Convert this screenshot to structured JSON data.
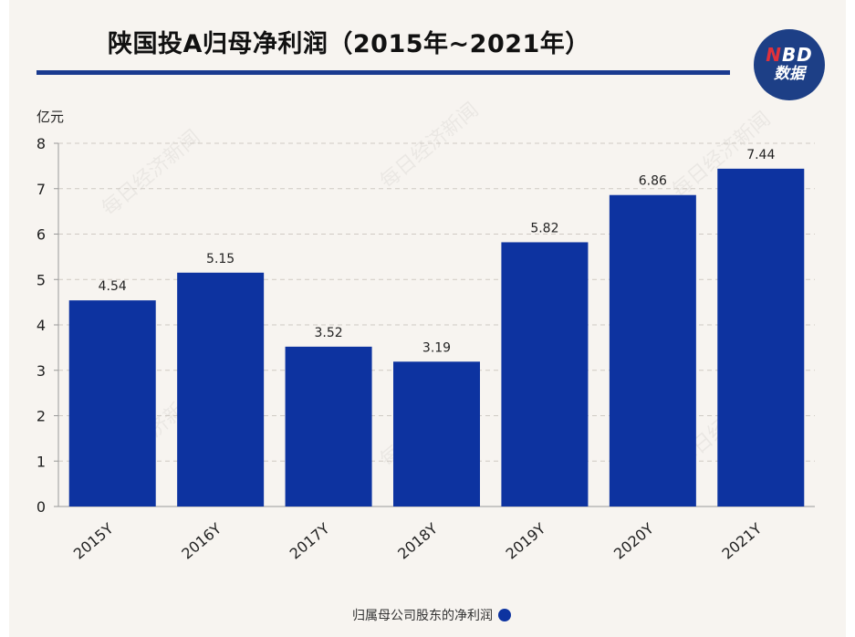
{
  "title": "陕国投A归母净利润（2015年~2021年）",
  "logo": {
    "line1_n": "N",
    "line1_rest": "BD",
    "line2": "数据"
  },
  "watermark": "每日经济新闻",
  "colors": {
    "bar": "#0d33a0",
    "title_rule": "#1a3a8f",
    "logo_bg": "#1d3f86",
    "background": "#f7f4f0"
  },
  "chart_data": {
    "type": "bar",
    "title": "陕国投A归母净利润（2015年~2021年）",
    "ylabel": "亿元",
    "xlabel": "",
    "categories": [
      "2015Y",
      "2016Y",
      "2017Y",
      "2018Y",
      "2019Y",
      "2020Y",
      "2021Y"
    ],
    "series": [
      {
        "name": "归属母公司股东的净利润",
        "values": [
          4.54,
          5.15,
          3.52,
          3.19,
          5.82,
          6.86,
          7.44
        ]
      }
    ],
    "data_labels": [
      "4.54",
      "5.15",
      "3.52",
      "3.19",
      "5.82",
      "6.86",
      "7.44"
    ],
    "ylim": [
      0,
      8
    ],
    "yticks": [
      0,
      1,
      2,
      3,
      4,
      5,
      6,
      7,
      8
    ],
    "grid": true,
    "legend_position": "bottom-center"
  }
}
